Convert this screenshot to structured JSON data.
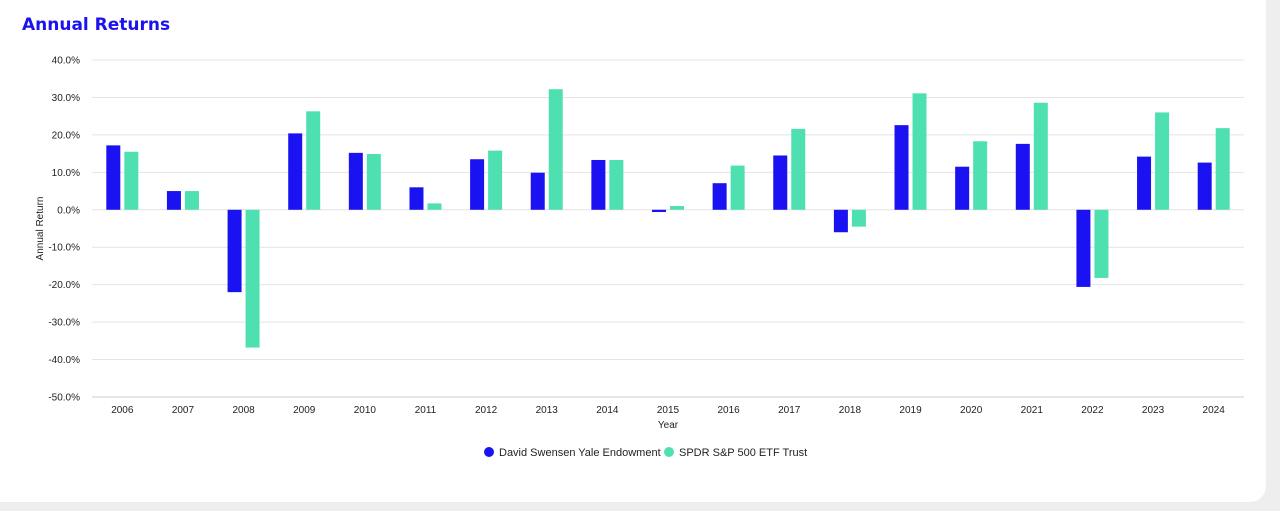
{
  "page": {
    "title": "Annual Returns"
  },
  "chart_data": {
    "type": "bar",
    "xlabel": "Year",
    "ylabel": "Annual Return",
    "ylim": [
      -50,
      40
    ],
    "yticks": [
      "40.0%",
      "30.0%",
      "20.0%",
      "10.0%",
      "0.0%",
      "-10.0%",
      "-20.0%",
      "-30.0%",
      "-40.0%",
      "-50.0%"
    ],
    "ytick_values": [
      40,
      30,
      20,
      10,
      0,
      -10,
      -20,
      -30,
      -40,
      -50
    ],
    "categories": [
      "2006",
      "2007",
      "2008",
      "2009",
      "2010",
      "2011",
      "2012",
      "2013",
      "2014",
      "2015",
      "2016",
      "2017",
      "2018",
      "2019",
      "2020",
      "2021",
      "2022",
      "2023",
      "2024"
    ],
    "series": [
      {
        "name": "David Swensen Yale Endowment",
        "color": "#1a12f0",
        "values": [
          17.2,
          5.0,
          -22.0,
          20.4,
          15.2,
          6.0,
          13.5,
          9.9,
          13.3,
          -0.6,
          7.1,
          14.5,
          -6.0,
          22.6,
          11.5,
          17.6,
          -20.6,
          14.2,
          12.6
        ]
      },
      {
        "name": "SPDR S&P 500 ETF Trust",
        "color": "#4fe0b1",
        "values": [
          15.5,
          5.0,
          -36.8,
          26.3,
          14.9,
          1.7,
          15.8,
          32.2,
          13.3,
          1.0,
          11.8,
          21.6,
          -4.5,
          31.1,
          18.3,
          28.6,
          -18.2,
          26.0,
          21.8
        ]
      }
    ],
    "grid": true,
    "legend_position": "bottom-center"
  }
}
